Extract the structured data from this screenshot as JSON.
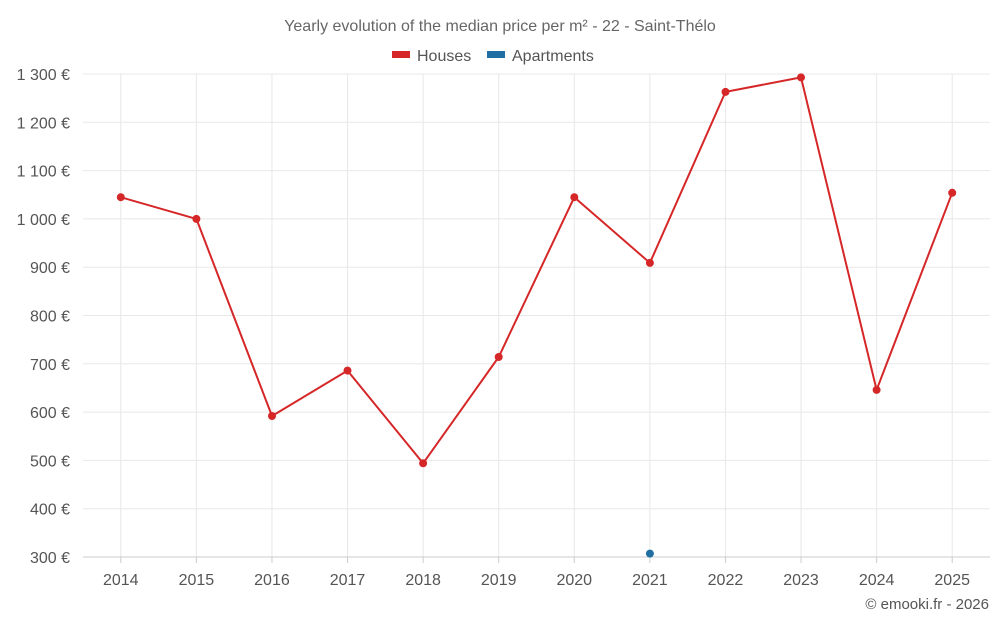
{
  "chart_data": {
    "type": "line",
    "title": "Yearly evolution of the median price per m² - 22 - Saint-Thélo",
    "xlabel": "",
    "ylabel": "",
    "categories": [
      "2014",
      "2015",
      "2016",
      "2017",
      "2018",
      "2019",
      "2020",
      "2021",
      "2022",
      "2023",
      "2024",
      "2025"
    ],
    "ylim": [
      300,
      1300
    ],
    "yticks": [
      300,
      400,
      500,
      600,
      700,
      800,
      900,
      1000,
      1100,
      1200,
      1300
    ],
    "ytick_labels": [
      "300 €",
      "400 €",
      "500 €",
      "600 €",
      "700 €",
      "800 €",
      "900 €",
      "1 000 €",
      "1 100 €",
      "1 200 €",
      "1 300 €"
    ],
    "grid": true,
    "legend_position": "top-center",
    "series": [
      {
        "name": "Houses",
        "color": "#d62728",
        "values": [
          1045,
          1000,
          592,
          686,
          494,
          714,
          1045,
          909,
          1263,
          1293,
          646,
          1054
        ]
      },
      {
        "name": "Apartments",
        "color": "#1f6fa3",
        "values": [
          null,
          null,
          null,
          null,
          null,
          null,
          null,
          307,
          null,
          null,
          null,
          null
        ]
      }
    ]
  },
  "credit": "© emooki.fr - 2026"
}
